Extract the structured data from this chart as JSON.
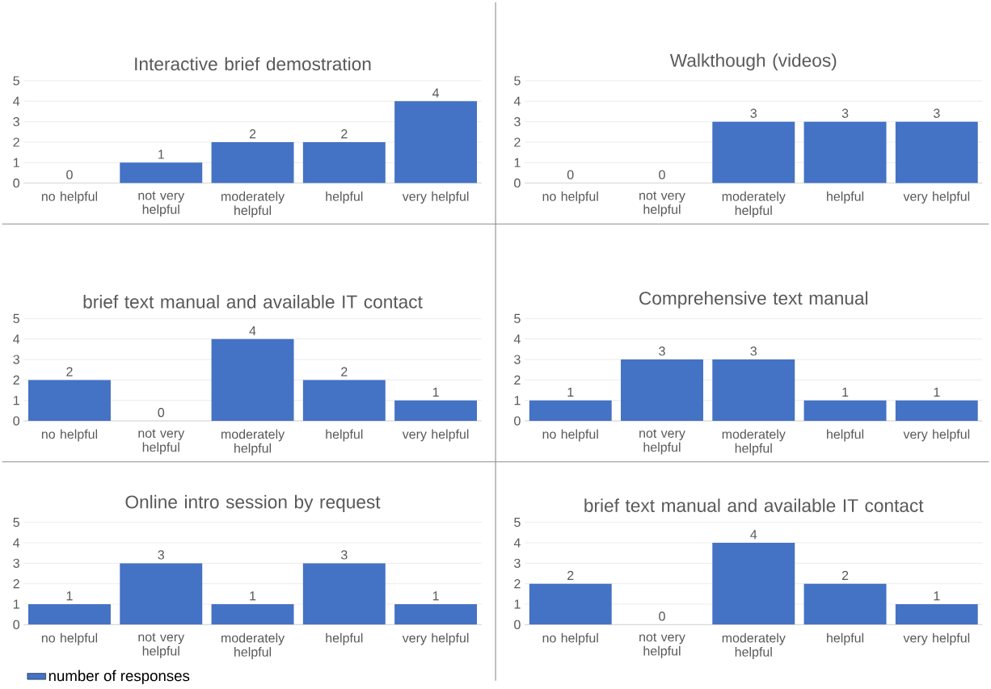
{
  "chart_data": [
    {
      "type": "bar",
      "title": "Interactive brief demostration",
      "categories": [
        "no helpful",
        "not very helpful",
        "moderately helpful",
        "helpful",
        "very helpful"
      ],
      "series": [
        {
          "color": "#4472c4",
          "values": [
            0,
            1,
            2,
            2,
            4
          ]
        }
      ],
      "ylim": [
        0,
        5
      ],
      "yticks": [
        0,
        1,
        2,
        3,
        4,
        5
      ],
      "grid": "y",
      "data_labels": true
    },
    {
      "type": "bar",
      "title": "Walkthough (videos)",
      "categories": [
        "no helpful",
        "not very helpful",
        "moderately helpful",
        "helpful",
        "very helpful"
      ],
      "series": [
        {
          "color": "#4472c4",
          "values": [
            0,
            0,
            3,
            3,
            3
          ]
        }
      ],
      "ylim": [
        0,
        5
      ],
      "yticks": [
        0,
        1,
        2,
        3,
        4,
        5
      ],
      "grid": "y",
      "data_labels": true
    },
    {
      "type": "bar",
      "title": "brief text manual and available IT contact",
      "categories": [
        "no helpful",
        "not very helpful",
        "moderately helpful",
        "helpful",
        "very helpful"
      ],
      "series": [
        {
          "color": "#4472c4",
          "values": [
            2,
            0,
            4,
            2,
            1
          ]
        }
      ],
      "ylim": [
        0,
        5
      ],
      "yticks": [
        0,
        1,
        2,
        3,
        4,
        5
      ],
      "grid": "y",
      "data_labels": true
    },
    {
      "type": "bar",
      "title": "Comprehensive text manual",
      "categories": [
        "no helpful",
        "not very helpful",
        "moderately helpful",
        "helpful",
        "very helpful"
      ],
      "series": [
        {
          "color": "#4472c4",
          "values": [
            1,
            3,
            3,
            1,
            1
          ]
        }
      ],
      "ylim": [
        0,
        5
      ],
      "yticks": [
        0,
        1,
        2,
        3,
        4,
        5
      ],
      "grid": "y",
      "data_labels": true
    },
    {
      "type": "bar",
      "title": "Online intro session by request",
      "categories": [
        "no helpful",
        "not very helpful",
        "moderately helpful",
        "helpful",
        "very helpful"
      ],
      "series": [
        {
          "name": "number of responses",
          "color": "#4472c4",
          "values": [
            1,
            3,
            1,
            3,
            1
          ]
        }
      ],
      "ylim": [
        0,
        5
      ],
      "yticks": [
        0,
        1,
        2,
        3,
        4,
        5
      ],
      "grid": "y",
      "data_labels": true,
      "legend": "bottom left"
    },
    {
      "type": "bar",
      "title": "brief text manual and available IT contact",
      "categories": [
        "no helpful",
        "not very helpful",
        "moderately helpful",
        "helpful",
        "very helpful"
      ],
      "series": [
        {
          "color": "#4472c4",
          "values": [
            2,
            0,
            4,
            2,
            1
          ]
        }
      ],
      "ylim": [
        0,
        5
      ],
      "yticks": [
        0,
        1,
        2,
        3,
        4,
        5
      ],
      "grid": "y",
      "data_labels": true
    }
  ]
}
